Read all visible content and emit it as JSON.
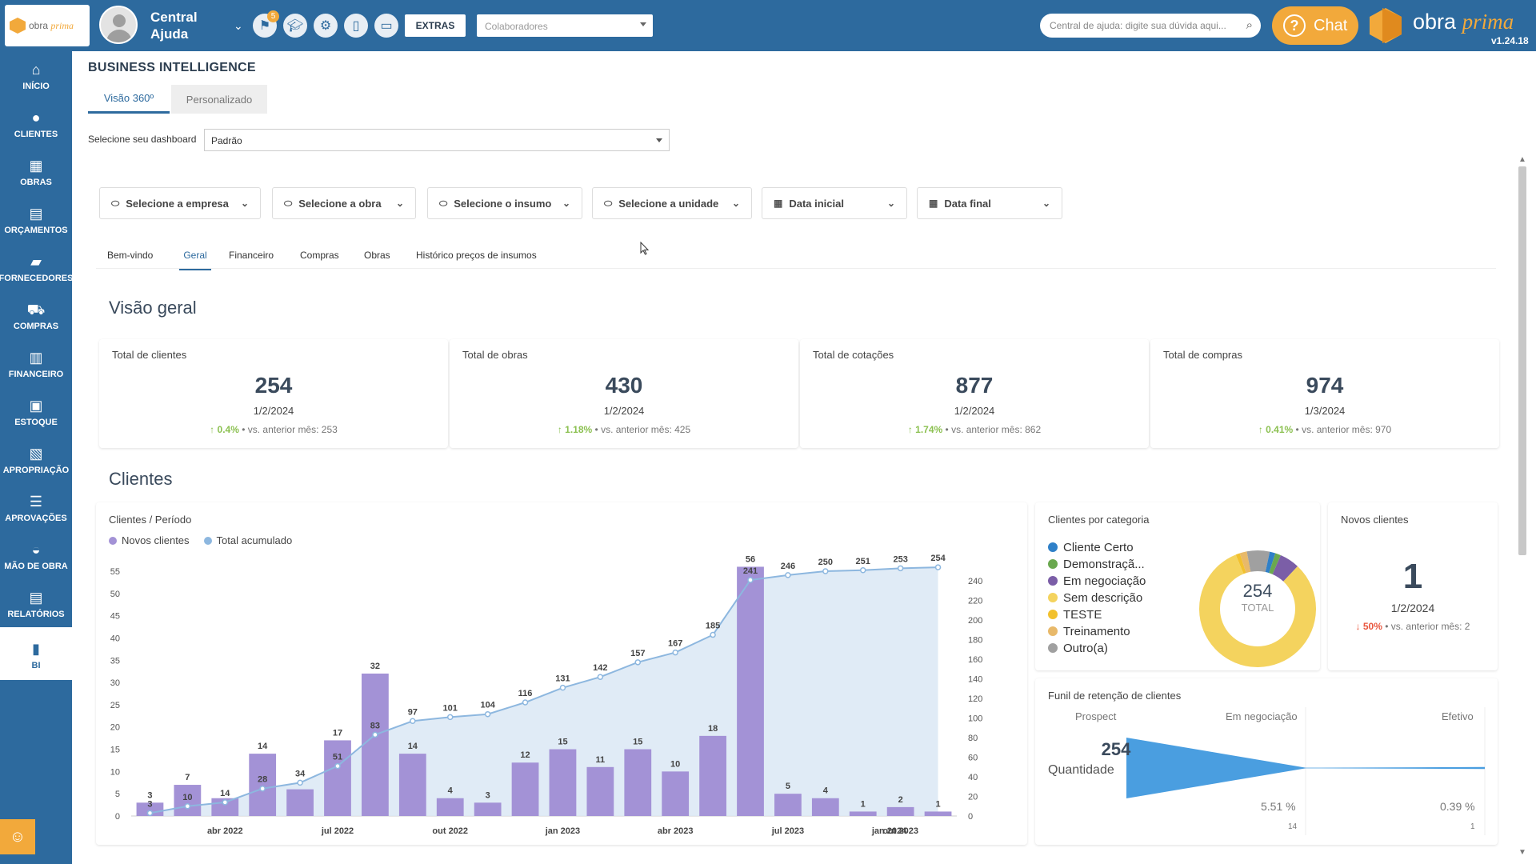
{
  "header": {
    "user_name": "Central Ajuda",
    "flag_badge": "5",
    "extras_label": "EXTRAS",
    "collaborators_placeholder": "Colaboradores",
    "help_search_placeholder": "Central de ajuda: digite sua dúvida aqui...",
    "chat_label": "Chat",
    "brand_name": "obra",
    "brand_name_italic": "prima",
    "version": "v1.24.18",
    "icons": [
      "flag-icon",
      "graduation-cap-icon",
      "gear-icon",
      "mobile-icon",
      "monitor-icon"
    ]
  },
  "sidebar": {
    "items": [
      {
        "label": "INÍCIO",
        "icon": "home-icon"
      },
      {
        "label": "CLIENTES",
        "icon": "user-icon"
      },
      {
        "label": "OBRAS",
        "icon": "building-icon"
      },
      {
        "label": "ORÇAMENTOS",
        "icon": "document-dollar-icon"
      },
      {
        "label": "FORNECEDORES",
        "icon": "truck-icon"
      },
      {
        "label": "COMPRAS",
        "icon": "cart-icon"
      },
      {
        "label": "FINANCEIRO",
        "icon": "calculator-icon"
      },
      {
        "label": "ESTOQUE",
        "icon": "box-icon"
      },
      {
        "label": "APROPRIAÇÃO",
        "icon": "file-icon"
      },
      {
        "label": "APROVAÇÕES",
        "icon": "checklist-icon"
      },
      {
        "label": "MÃO DE OBRA",
        "icon": "helmet-icon"
      },
      {
        "label": "RELATÓRIOS",
        "icon": "report-icon"
      },
      {
        "label": "BI",
        "icon": "bar-chart-icon",
        "active": true
      }
    ]
  },
  "page": {
    "title": "BUSINESS INTELLIGENCE",
    "view_tabs": [
      "Visão 360º",
      "Personalizado"
    ],
    "dashboard_label": "Selecione seu dashboard",
    "dashboard_value": "Padrão",
    "filters": [
      "Selecione a empresa",
      "Selecione a obra",
      "Selecione o insumo",
      "Selecione a unidade",
      "Data inicial",
      "Data final"
    ],
    "nav_tabs": [
      "Bem-vindo",
      "Geral",
      "Financeiro",
      "Compras",
      "Obras",
      "Histórico preços de insumos"
    ],
    "active_nav_tab": "Geral",
    "overview_title": "Visão geral",
    "clients_title": "Clientes"
  },
  "kpis": [
    {
      "title": "Total de clientes",
      "value": "254",
      "date": "1/2/2024",
      "pct": "0.4%",
      "cmp": "vs. anterior mês:",
      "prev": "253"
    },
    {
      "title": "Total de obras",
      "value": "430",
      "date": "1/2/2024",
      "pct": "1.18%",
      "cmp": "vs. anterior mês:",
      "prev": "425"
    },
    {
      "title": "Total de cotações",
      "value": "877",
      "date": "1/2/2024",
      "pct": "1.74%",
      "cmp": "vs. anterior mês:",
      "prev": "862"
    },
    {
      "title": "Total de compras",
      "value": "974",
      "date": "1/3/2024",
      "pct": "0.41%",
      "cmp": "vs. anterior mês:",
      "prev": "970"
    }
  ],
  "clients_period": {
    "title": "Clientes / Período",
    "legend": [
      "Novos clientes",
      "Total acumulado"
    ]
  },
  "chart_data": {
    "type": "bar",
    "title": "Clientes / Período",
    "series": [
      {
        "name": "Novos clientes",
        "type": "bar",
        "axis": "left",
        "color": "#a392d6",
        "values": [
          3,
          7,
          4,
          14,
          6,
          17,
          32,
          14,
          4,
          3,
          12,
          15,
          11,
          15,
          10,
          18,
          56,
          5,
          4,
          1,
          2,
          1
        ]
      },
      {
        "name": "Total acumulado",
        "type": "area",
        "axis": "right",
        "color": "#8db7df",
        "values": [
          3,
          10,
          14,
          28,
          34,
          51,
          83,
          97,
          101,
          104,
          116,
          131,
          142,
          157,
          167,
          185,
          241,
          246,
          250,
          251,
          253,
          254
        ]
      }
    ],
    "bar_labels": [
      "3",
      "7",
      "",
      "14",
      "",
      "17",
      "32",
      "14",
      "4",
      "3",
      "12",
      "15",
      "11",
      "15",
      "10",
      "18",
      "56",
      "5",
      "4",
      "1",
      "2",
      "1"
    ],
    "line_labels": [
      "3",
      "10",
      "14",
      "28",
      "34",
      "51",
      "83",
      "97",
      "101",
      "104",
      "116",
      "131",
      "142",
      "157",
      "167",
      "185",
      "241",
      "246",
      "250",
      "251",
      "253",
      "254"
    ],
    "x_ticks": [
      "abr 2022",
      "jul 2022",
      "out 2022",
      "jan 2023",
      "abr 2023",
      "jul 2023",
      "out 2023",
      "jan 2024"
    ],
    "y_left_ticks": [
      0,
      5,
      10,
      15,
      20,
      25,
      30,
      35,
      40,
      45,
      50,
      55
    ],
    "y_right_ticks": [
      0,
      20,
      40,
      60,
      80,
      100,
      120,
      140,
      160,
      180,
      200,
      220,
      240
    ],
    "ylim_left": [
      0,
      55
    ],
    "ylim_right": [
      0,
      250
    ],
    "legend_position": "top-left"
  },
  "categories": {
    "title": "Clientes por categoria",
    "items": [
      {
        "label": "Cliente Certo",
        "color": "#2f80c8",
        "value": 4
      },
      {
        "label": "Demonstraçã...",
        "color": "#6aa84f",
        "value": 4
      },
      {
        "label": "Em negociação",
        "color": "#7b5ea7",
        "value": 14
      },
      {
        "label": "Sem descrição",
        "color": "#f4d35e",
        "value": 208
      },
      {
        "label": "TESTE",
        "color": "#f2c12e",
        "value": 3
      },
      {
        "label": "Treinamento",
        "color": "#e8b96a",
        "value": 5
      },
      {
        "label": "Outro(a)",
        "color": "#a0a0a0",
        "value": 16
      }
    ],
    "total_value": "254",
    "total_label": "TOTAL"
  },
  "new_clients": {
    "title": "Novos clientes",
    "value": "1",
    "date": "1/2/2024",
    "pct": "50%",
    "cmp": "vs. anterior mês:",
    "prev": "2"
  },
  "funnel": {
    "title": "Funil de retenção de clientes",
    "stages": [
      "Prospect",
      "Em negociação",
      "Efetivo"
    ],
    "value": "254",
    "value_label": "Quantidade",
    "stage_values": [
      254,
      14,
      1
    ],
    "pcts": [
      "5.51 %",
      "0.39 %"
    ],
    "counts": [
      "14",
      "1"
    ]
  }
}
